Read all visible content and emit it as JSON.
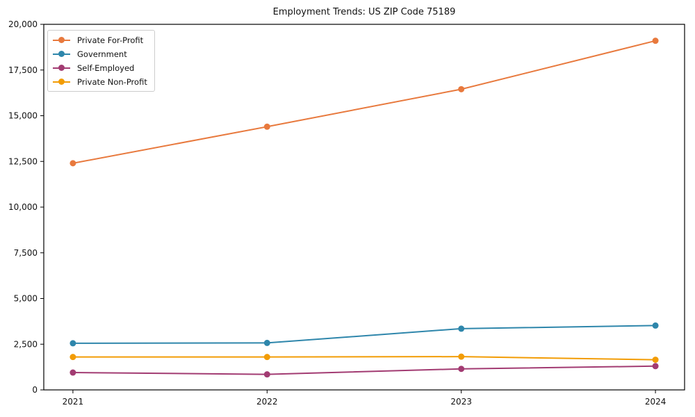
{
  "title": "Employment Trends: US ZIP Code 75189",
  "chart_data": {
    "type": "line",
    "title": "Employment Trends: US ZIP Code 75189",
    "categories": [
      "2021",
      "2022",
      "2023",
      "2024"
    ],
    "series": [
      {
        "name": "Private For-Profit",
        "color": "#e8793d",
        "values": [
          12400,
          14400,
          16450,
          19100
        ]
      },
      {
        "name": "Government",
        "color": "#2e86ab",
        "values": [
          2550,
          2570,
          3350,
          3520
        ]
      },
      {
        "name": "Self-Employed",
        "color": "#a23b72",
        "values": [
          950,
          850,
          1150,
          1300
        ]
      },
      {
        "name": "Private Non-Profit",
        "color": "#f29c05",
        "values": [
          1800,
          1800,
          1820,
          1650
        ]
      }
    ],
    "xlabel": "",
    "ylabel": "",
    "xlim_categories_margin": 0.15,
    "ylim": [
      0,
      20000
    ],
    "yticks": [
      0,
      2500,
      5000,
      7500,
      10000,
      12500,
      15000,
      17500,
      20000
    ],
    "ytick_labels": [
      "0",
      "2,500",
      "5,000",
      "7,500",
      "10,000",
      "12,500",
      "15,000",
      "17,500",
      "20,000"
    ],
    "legend": {
      "position": "upper-left",
      "entries": [
        "Private For-Profit",
        "Government",
        "Self-Employed",
        "Private Non-Profit"
      ]
    },
    "grid": false,
    "marker": "circle",
    "frame_color": "#000000",
    "text_color": "#111111"
  }
}
